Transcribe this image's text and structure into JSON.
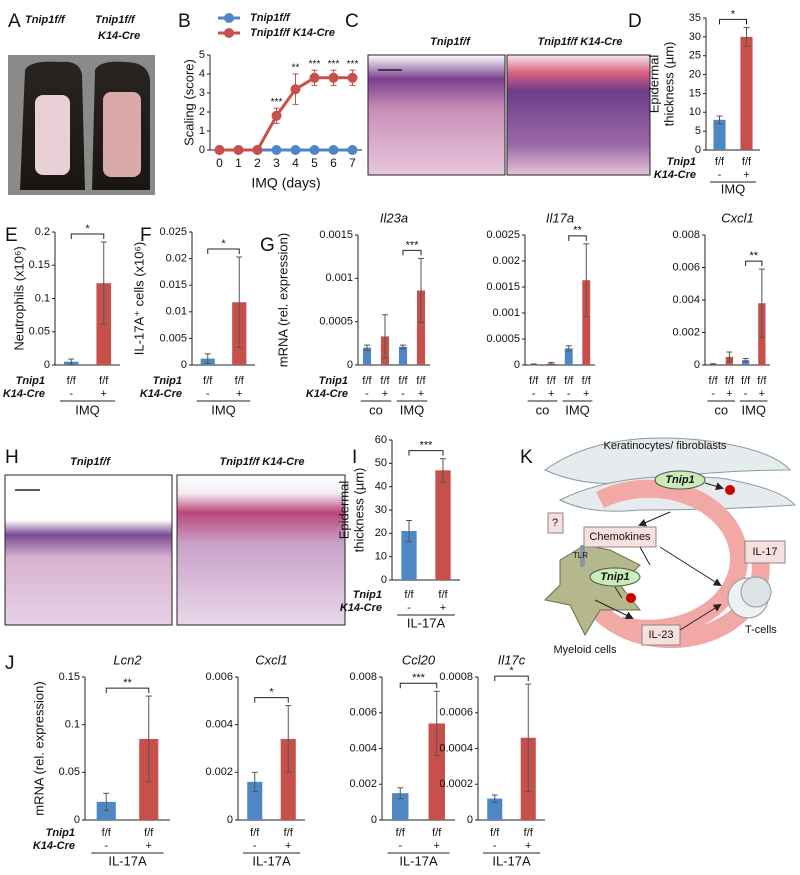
{
  "panel_letters": [
    "A",
    "B",
    "C",
    "D",
    "E",
    "F",
    "G",
    "H",
    "I",
    "J",
    "K"
  ],
  "photos": {
    "A": {
      "labels": [
        [
          "Tnip1f/f"
        ],
        [
          "Tnip1f/f",
          "K14-Cre"
        ]
      ]
    },
    "C": {
      "labels": [
        "Tnip1f/f",
        "Tnip1f/f K14-Cre"
      ]
    },
    "H": {
      "labels": [
        "Tnip1f/f",
        "Tnip1f/f K14-Cre"
      ]
    }
  },
  "diagram": {
    "labels": [
      "Keratinocytes/ fibroblasts",
      "Tnip1",
      "Chemokines",
      "IL-17",
      "?",
      "TLR",
      "Tnip1",
      "T-cells",
      "IL-23",
      "Myeloid cells"
    ]
  },
  "chart_data": [
    {
      "type": "line",
      "xlabel": "IMQ (days)",
      "ylabel": [
        "Scaling (score)"
      ],
      "x": [
        0,
        1,
        2,
        3,
        4,
        5,
        6,
        7
      ],
      "xlim": [
        -0.5,
        7.5
      ],
      "xticks": [
        0,
        1,
        2,
        3,
        4,
        5,
        6,
        7
      ],
      "ylim": [
        0,
        5
      ],
      "yticks": [
        0,
        1,
        2,
        3,
        4,
        5
      ],
      "series": [
        {
          "name": "Tnip1f/f",
          "color": "#4f86c6",
          "values": [
            0,
            0,
            0,
            0,
            0,
            0,
            0,
            0
          ]
        },
        {
          "name": "Tnip1f/f K14-Cre",
          "color": "#c8504a",
          "values": [
            0,
            0,
            0,
            1.8,
            3.2,
            3.8,
            3.8,
            3.8
          ],
          "errors": [
            0,
            0,
            0,
            0.4,
            0.8,
            0.4,
            0.4,
            0.4
          ]
        }
      ],
      "annotations": [
        {
          "x": 3,
          "label": "***"
        },
        {
          "x": 4,
          "label": "**"
        },
        {
          "x": 5,
          "label": "***"
        },
        {
          "x": 6,
          "label": "***"
        },
        {
          "x": 7,
          "label": "***"
        }
      ]
    },
    {
      "type": "bar",
      "ylabel": [
        "Epidermal",
        "thickness (µm)"
      ],
      "row_labels": [
        "Tnip1",
        "K14-Cre"
      ],
      "categories": [
        [
          "f/f",
          "-"
        ],
        [
          "f/f",
          "+"
        ]
      ],
      "group_labels": [
        "IMQ"
      ],
      "bar_colors": [
        "#4f86c6",
        "#c8504a"
      ],
      "values": [
        8,
        30
      ],
      "errors": [
        1,
        2.5
      ],
      "significance": [
        "*"
      ],
      "ylim": [
        0,
        35
      ],
      "yticks": [
        0,
        5,
        10,
        15,
        20,
        25,
        30,
        35
      ]
    },
    {
      "type": "bar",
      "ylabel": [
        "Neutrophils (x10⁶)"
      ],
      "row_labels": [
        "Tnip1",
        "K14-Cre"
      ],
      "categories": [
        [
          "f/f",
          "-"
        ],
        [
          "f/f",
          "+"
        ]
      ],
      "group_labels": [
        "IMQ"
      ],
      "bar_colors": [
        "#4f86c6",
        "#c8504a"
      ],
      "values": [
        0.005,
        0.123
      ],
      "errors": [
        0.004,
        0.062
      ],
      "significance": [
        "*"
      ],
      "ylim": [
        0,
        0.2
      ],
      "yticks": [
        0,
        0.05,
        0.1,
        0.15,
        0.2
      ]
    },
    {
      "type": "bar",
      "ylabel": [
        "IL-17A⁺ cells  (x10⁶)"
      ],
      "row_labels": [
        "Tnip1",
        "K14-Cre"
      ],
      "categories": [
        [
          "f/f",
          "-"
        ],
        [
          "f/f",
          "+"
        ]
      ],
      "group_labels": [
        "IMQ"
      ],
      "bar_colors": [
        "#4f86c6",
        "#c8504a"
      ],
      "values": [
        0.0012,
        0.0118
      ],
      "errors": [
        0.0009,
        0.0085
      ],
      "significance": [
        "*"
      ],
      "ylim": [
        0,
        0.025
      ],
      "yticks": [
        0,
        0.005,
        0.01,
        0.015,
        0.02,
        0.025
      ]
    },
    {
      "type": "bar",
      "title": "Il23a",
      "ylabel": [
        "mRNA (rel. expression)"
      ],
      "row_labels": [
        "Tnip1",
        "K14-Cre"
      ],
      "categories": [
        [
          "f/f",
          "-"
        ],
        [
          "f/f",
          "+"
        ],
        [
          "f/f",
          "-"
        ],
        [
          "f/f",
          "+"
        ]
      ],
      "group_labels": [
        "co",
        "IMQ"
      ],
      "bar_colors": [
        "#4f86c6",
        "#c8504a",
        "#4f86c6",
        "#c8504a"
      ],
      "values": [
        0.0002,
        0.00033,
        0.00021,
        0.00086
      ],
      "errors": [
        3e-05,
        0.00025,
        2e-05,
        0.00037
      ],
      "significance": [
        null,
        "***"
      ],
      "ylim": [
        0,
        0.0015
      ],
      "yticks": [
        0,
        0.0005,
        0.001,
        0.0015
      ]
    },
    {
      "type": "bar",
      "title": "Il17a",
      "categories": [
        [
          "f/f",
          "-"
        ],
        [
          "f/f",
          "+"
        ],
        [
          "f/f",
          "-"
        ],
        [
          "f/f",
          "+"
        ]
      ],
      "group_labels": [
        "co",
        "IMQ"
      ],
      "bar_colors": [
        "#4f86c6",
        "#c8504a",
        "#4f86c6",
        "#c8504a"
      ],
      "values": [
        1e-05,
        3e-05,
        0.00032,
        0.00163
      ],
      "errors": [
        1e-05,
        2e-05,
        5e-05,
        0.0007
      ],
      "significance": [
        null,
        "**"
      ],
      "ylim": [
        0,
        0.0025
      ],
      "yticks": [
        0,
        0.0005,
        0.001,
        0.0015,
        0.002,
        0.0025
      ]
    },
    {
      "type": "bar",
      "title": "Cxcl1",
      "categories": [
        [
          "f/f",
          "-"
        ],
        [
          "f/f",
          "+"
        ],
        [
          "f/f",
          "-"
        ],
        [
          "f/f",
          "+"
        ]
      ],
      "group_labels": [
        "co",
        "IMQ"
      ],
      "bar_colors": [
        "#4f86c6",
        "#c8504a",
        "#4f86c6",
        "#c8504a"
      ],
      "values": [
        5e-05,
        0.0005,
        0.0003,
        0.0038
      ],
      "errors": [
        3e-05,
        0.0003,
        0.0001,
        0.0021
      ],
      "significance": [
        null,
        "**"
      ],
      "ylim": [
        0,
        0.008
      ],
      "yticks": [
        0,
        0.002,
        0.004,
        0.006,
        0.008
      ]
    },
    {
      "type": "bar",
      "ylabel": [
        "Epidermal",
        "thickness (µm)"
      ],
      "row_labels": [
        "Tnip1",
        "K14-Cre"
      ],
      "categories": [
        [
          "f/f",
          "-"
        ],
        [
          "f/f",
          "+"
        ]
      ],
      "group_labels": [
        "IL-17A"
      ],
      "bar_colors": [
        "#4f86c6",
        "#c8504a"
      ],
      "values": [
        21,
        47
      ],
      "errors": [
        4.5,
        5
      ],
      "significance": [
        "***"
      ],
      "ylim": [
        0,
        60
      ],
      "yticks": [
        0,
        10,
        20,
        30,
        40,
        50,
        60
      ]
    },
    {
      "type": "bar",
      "title": "Lcn2",
      "ylabel": [
        "mRNA (rel. expression)"
      ],
      "row_labels": [
        "Tnip1",
        "K14-Cre"
      ],
      "categories": [
        [
          "f/f",
          "-"
        ],
        [
          "f/f",
          "+"
        ]
      ],
      "group_labels": [
        "IL-17A"
      ],
      "bar_colors": [
        "#4f86c6",
        "#c8504a"
      ],
      "values": [
        0.019,
        0.085
      ],
      "errors": [
        0.009,
        0.045
      ],
      "significance": [
        "**"
      ],
      "ylim": [
        0,
        0.15
      ],
      "yticks": [
        0,
        0.05,
        0.1,
        0.15
      ]
    },
    {
      "type": "bar",
      "title": "Cxcl1",
      "categories": [
        [
          "f/f",
          "-"
        ],
        [
          "f/f",
          "+"
        ]
      ],
      "group_labels": [
        "IL-17A"
      ],
      "bar_colors": [
        "#4f86c6",
        "#c8504a"
      ],
      "values": [
        0.0016,
        0.0034
      ],
      "errors": [
        0.0004,
        0.0014
      ],
      "significance": [
        "*"
      ],
      "ylim": [
        0,
        0.006
      ],
      "yticks": [
        0,
        0.002,
        0.004,
        0.006
      ]
    },
    {
      "type": "bar",
      "title": "Ccl20",
      "categories": [
        [
          "f/f",
          "-"
        ],
        [
          "f/f",
          "+"
        ]
      ],
      "group_labels": [
        "IL-17A"
      ],
      "bar_colors": [
        "#4f86c6",
        "#c8504a"
      ],
      "values": [
        0.0015,
        0.0054
      ],
      "errors": [
        0.0003,
        0.0018
      ],
      "significance": [
        "***"
      ],
      "ylim": [
        0,
        0.008
      ],
      "yticks": [
        0,
        0.002,
        0.004,
        0.006,
        0.008
      ]
    },
    {
      "type": "bar",
      "title": "Il17c",
      "categories": [
        [
          "f/f",
          "-"
        ],
        [
          "f/f",
          "+"
        ]
      ],
      "group_labels": [
        "IL-17A"
      ],
      "bar_colors": [
        "#4f86c6",
        "#c8504a"
      ],
      "values": [
        0.00012,
        0.00046
      ],
      "errors": [
        2e-05,
        0.0003
      ],
      "significance": [
        "*"
      ],
      "ylim": [
        0,
        0.0008
      ],
      "yticks": [
        0,
        0.0002,
        0.0004,
        0.0006,
        0.0008
      ]
    }
  ]
}
